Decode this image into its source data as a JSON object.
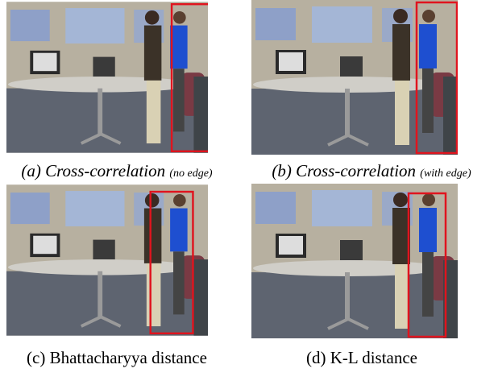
{
  "panels": [
    {
      "caption": "(a) Cross-correlation",
      "note": "(no edge)"
    },
    {
      "caption": "(b) Cross-correlation",
      "note": "(with edge)"
    },
    {
      "caption": "(c) Bhattacharyya distance"
    },
    {
      "caption": "(d) K-L distance"
    }
  ]
}
